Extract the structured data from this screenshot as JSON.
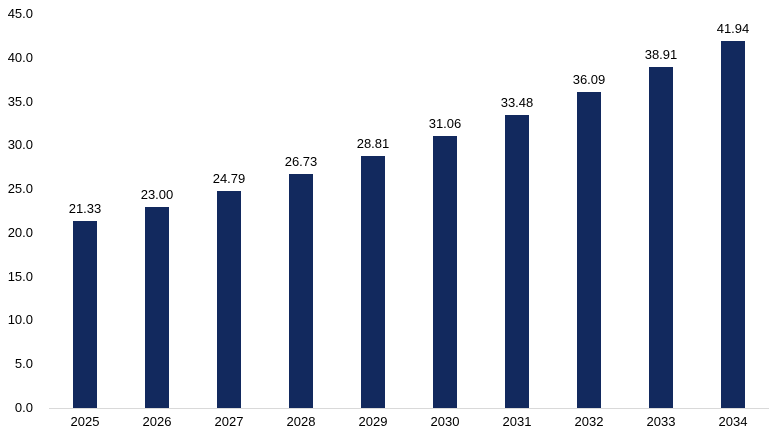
{
  "chart_data": {
    "type": "bar",
    "title": "",
    "xlabel": "",
    "ylabel": "",
    "categories": [
      "2025",
      "2026",
      "2027",
      "2028",
      "2029",
      "2030",
      "2031",
      "2032",
      "2033",
      "2034"
    ],
    "values": [
      21.33,
      23.0,
      24.79,
      26.73,
      28.81,
      31.06,
      33.48,
      36.09,
      38.91,
      41.94
    ],
    "value_labels": [
      "21.33",
      "23.00",
      "24.79",
      "26.73",
      "28.81",
      "31.06",
      "33.48",
      "36.09",
      "38.91",
      "41.94"
    ],
    "y_ticks": [
      "45.0",
      "40.0",
      "35.0",
      "30.0",
      "25.0",
      "20.0",
      "15.0",
      "10.0",
      "5.0",
      "0.0"
    ],
    "ylim": [
      0,
      45
    ],
    "grid": false,
    "legend_position": "none",
    "bar_color": "#12295E",
    "axis_line_color": "#D9D9D9",
    "label_color": "#000000",
    "background_color": "#FFFFFF"
  }
}
